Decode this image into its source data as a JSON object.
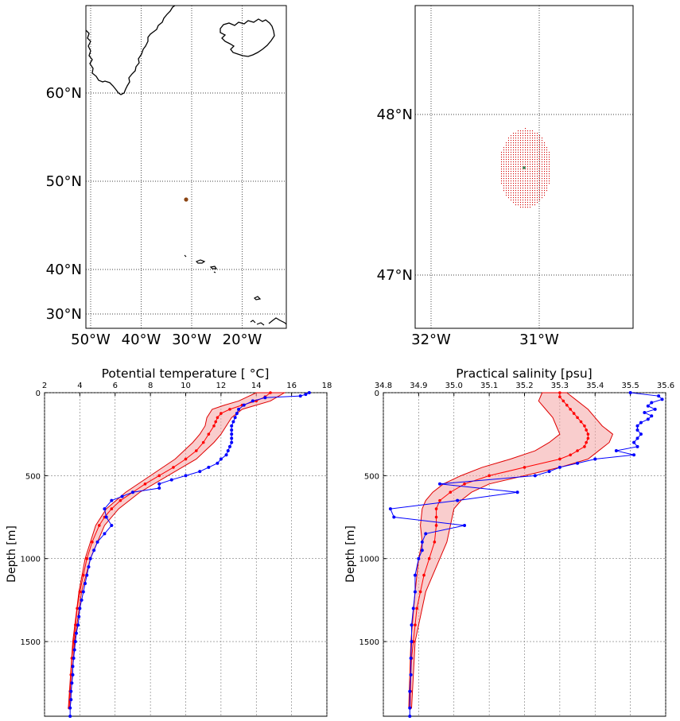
{
  "chart_data": [
    {
      "type": "map",
      "panel": "overview-map",
      "lon_ticks": [
        "50°W",
        "40°W",
        "30°W",
        "20°W"
      ],
      "lat_ticks": [
        "60°N",
        "50°N",
        "40°N",
        "30°N"
      ],
      "grid": true,
      "xlim": [
        -51,
        -12
      ],
      "ylim": [
        28.5,
        72
      ],
      "marker": {
        "lon": -31.1,
        "lat": 47.7,
        "color": "#8b4513"
      },
      "coast_color": "#000000"
    },
    {
      "type": "map",
      "panel": "zoom-map",
      "lon_ticks": [
        "32°W",
        "31°W"
      ],
      "lat_ticks": [
        "48°N",
        "47°N"
      ],
      "grid": true,
      "xlim": [
        -32.15,
        -30.15
      ],
      "ylim": [
        46.65,
        48.67
      ],
      "ellipse": {
        "lon": -31.13,
        "lat": 47.66,
        "rx_deg": 0.24,
        "ry_deg": 0.25,
        "color": "#d40000"
      },
      "point": {
        "lon": -31.13,
        "lat": 47.66,
        "color": "#2e8b57"
      }
    },
    {
      "type": "line",
      "panel": "temperature-profile",
      "title": "Potential temperature [$^\\circ$C]",
      "title_display": "Potential temperature [ °C]",
      "ylabel": "Depth [m]",
      "xlim": [
        2,
        18
      ],
      "ylim": [
        1950,
        0
      ],
      "xticks": [
        2,
        4,
        6,
        8,
        10,
        12,
        14,
        16,
        18
      ],
      "yticks": [
        0,
        500,
        1000,
        1500
      ],
      "grid": true,
      "observed": {
        "color": "#0000ff",
        "depth": [
          0,
          10,
          20,
          30,
          50,
          75,
          100,
          125,
          150,
          175,
          200,
          225,
          250,
          275,
          300,
          325,
          350,
          375,
          400,
          425,
          450,
          475,
          500,
          525,
          550,
          575,
          600,
          625,
          650,
          700,
          750,
          800,
          850,
          900,
          950,
          1000,
          1050,
          1100,
          1150,
          1200,
          1250,
          1300,
          1350,
          1400,
          1450,
          1500,
          1550,
          1600,
          1650,
          1700,
          1750,
          1800,
          1850,
          1900,
          1950
        ],
        "values": [
          17.0,
          16.8,
          16.5,
          14.5,
          13.8,
          13.3,
          13.0,
          12.9,
          12.8,
          12.7,
          12.6,
          12.6,
          12.6,
          12.6,
          12.6,
          12.5,
          12.4,
          12.3,
          12.0,
          11.8,
          11.3,
          10.8,
          10.0,
          9.2,
          8.5,
          8.5,
          7.0,
          6.4,
          5.8,
          5.4,
          5.5,
          5.8,
          5.4,
          5.0,
          4.8,
          4.6,
          4.5,
          4.4,
          4.3,
          4.2,
          4.1,
          4.0,
          3.95,
          3.9,
          3.8,
          3.75,
          3.7,
          3.65,
          3.6,
          3.6,
          3.55,
          3.5,
          3.5,
          3.45,
          3.45
        ]
      },
      "model_mean": {
        "color": "#ff0000",
        "depth": [
          0,
          25,
          50,
          75,
          100,
          125,
          150,
          175,
          200,
          250,
          300,
          350,
          400,
          450,
          500,
          550,
          600,
          650,
          700,
          750,
          800,
          900,
          1000,
          1100,
          1200,
          1300,
          1400,
          1500,
          1600,
          1700,
          1800,
          1900
        ],
        "values": [
          14.8,
          14.5,
          14.0,
          13.2,
          12.5,
          12.0,
          11.8,
          11.7,
          11.6,
          11.3,
          11.0,
          10.6,
          10.0,
          9.3,
          8.5,
          7.7,
          7.0,
          6.3,
          5.8,
          5.4,
          5.1,
          4.7,
          4.4,
          4.2,
          4.0,
          3.85,
          3.75,
          3.65,
          3.55,
          3.5,
          3.45,
          3.4
        ]
      },
      "model_band": {
        "color": "#f4a4a4",
        "depth": [
          0,
          25,
          50,
          75,
          100,
          150,
          200,
          250,
          300,
          400,
          500,
          600,
          700,
          800,
          1000,
          1200,
          1500,
          1900
        ],
        "lower": [
          14.0,
          13.5,
          13.0,
          12.2,
          11.5,
          11.2,
          11.1,
          10.8,
          10.4,
          9.4,
          8.0,
          6.6,
          5.5,
          4.9,
          4.3,
          3.95,
          3.6,
          3.35
        ],
        "upper": [
          15.6,
          15.2,
          14.8,
          14.0,
          13.2,
          12.6,
          12.3,
          12.0,
          11.6,
          10.6,
          9.0,
          7.4,
          6.2,
          5.4,
          4.6,
          4.1,
          3.7,
          3.45
        ]
      }
    },
    {
      "type": "line",
      "panel": "salinity-profile",
      "title": "Practical salinity [psu]",
      "ylabel": "Depth [m]",
      "xlim": [
        34.8,
        35.6
      ],
      "ylim": [
        1950,
        0
      ],
      "xticks": [
        "34.8",
        "34.9",
        "35.0",
        "35.1",
        "35.2",
        "35.3",
        "35.4",
        "35.5",
        "35.6"
      ],
      "yticks": [
        0,
        500,
        1000,
        1500
      ],
      "grid": true,
      "observed": {
        "color": "#0000ff",
        "depth": [
          0,
          20,
          40,
          60,
          80,
          100,
          120,
          140,
          160,
          180,
          200,
          225,
          250,
          275,
          300,
          325,
          350,
          375,
          400,
          425,
          450,
          475,
          500,
          550,
          600,
          650,
          700,
          750,
          800,
          850,
          900,
          950,
          1000,
          1100,
          1200,
          1300,
          1400,
          1500,
          1600,
          1700,
          1800,
          1900,
          1950
        ],
        "values": [
          35.5,
          35.58,
          35.59,
          35.56,
          35.55,
          35.57,
          35.54,
          35.56,
          35.55,
          35.53,
          35.52,
          35.52,
          35.53,
          35.52,
          35.51,
          35.52,
          35.46,
          35.51,
          35.4,
          35.35,
          35.3,
          35.27,
          35.23,
          34.96,
          35.18,
          35.01,
          34.82,
          34.83,
          35.03,
          34.92,
          34.91,
          34.91,
          34.9,
          34.89,
          34.89,
          34.885,
          34.88,
          34.88,
          34.878,
          34.878,
          34.875,
          34.875,
          34.875
        ]
      },
      "model_mean": {
        "color": "#ff0000",
        "depth": [
          0,
          25,
          50,
          75,
          100,
          125,
          150,
          175,
          200,
          225,
          250,
          275,
          300,
          325,
          350,
          375,
          400,
          450,
          500,
          550,
          600,
          650,
          700,
          750,
          800,
          900,
          1000,
          1100,
          1200,
          1300,
          1400,
          1500,
          1600,
          1700,
          1800,
          1900
        ],
        "values": [
          35.3,
          35.3,
          35.31,
          35.32,
          35.33,
          35.34,
          35.35,
          35.36,
          35.37,
          35.375,
          35.38,
          35.38,
          35.375,
          35.37,
          35.35,
          35.33,
          35.3,
          35.2,
          35.1,
          35.03,
          34.99,
          34.96,
          34.95,
          34.95,
          34.95,
          34.945,
          34.93,
          34.915,
          34.905,
          34.895,
          34.89,
          34.885,
          34.88,
          34.878,
          34.877,
          34.876
        ]
      },
      "model_band": {
        "color": "#f4a4a4",
        "depth": [
          0,
          50,
          100,
          150,
          200,
          250,
          300,
          350,
          400,
          450,
          500,
          550,
          600,
          650,
          700,
          800,
          900,
          1000,
          1200,
          1500,
          1900
        ],
        "lower": [
          35.25,
          35.24,
          35.26,
          35.28,
          35.29,
          35.3,
          35.27,
          35.23,
          35.16,
          35.08,
          35.02,
          34.97,
          34.94,
          34.92,
          34.91,
          34.905,
          34.91,
          34.9,
          34.89,
          34.878,
          34.872
        ],
        "upper": [
          35.32,
          35.35,
          35.38,
          35.4,
          35.42,
          35.45,
          35.44,
          35.41,
          35.38,
          35.3,
          35.2,
          35.1,
          35.05,
          35.02,
          35.0,
          34.99,
          34.98,
          34.96,
          34.92,
          34.89,
          34.88
        ]
      }
    }
  ]
}
